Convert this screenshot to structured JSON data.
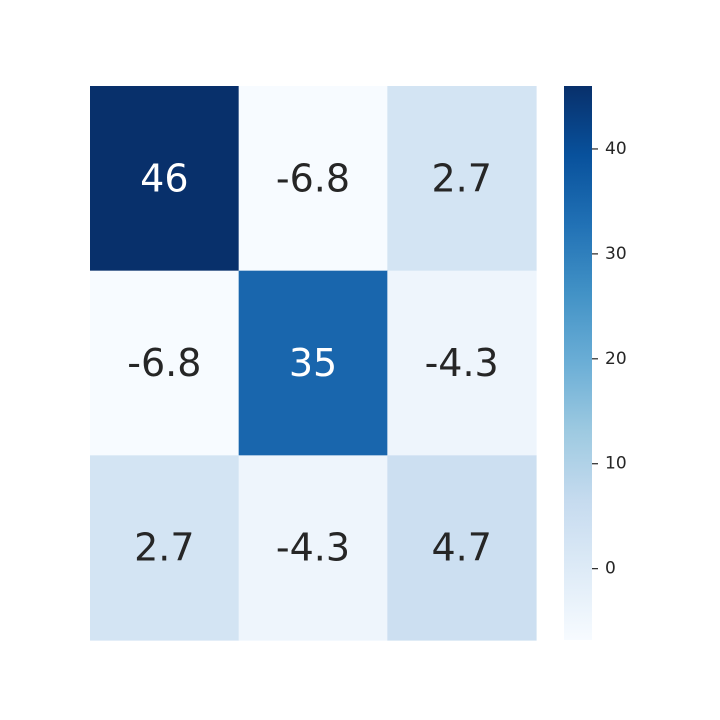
{
  "chart_data": {
    "type": "heatmap",
    "title": "",
    "xlabel": "",
    "ylabel": "",
    "colormap": "Blues",
    "rows": 3,
    "cols": 3,
    "values": [
      [
        46,
        -6.8,
        2.7
      ],
      [
        -6.8,
        35,
        -4.3
      ],
      [
        2.7,
        -4.3,
        4.7
      ]
    ],
    "annotations": [
      [
        "46",
        "-6.8",
        "2.7"
      ],
      [
        "-6.8",
        "35",
        "-4.3"
      ],
      [
        "2.7",
        "-4.3",
        "4.7"
      ]
    ],
    "colorbar": {
      "range": [
        -6.8,
        46
      ],
      "ticks": [
        0,
        10,
        20,
        30,
        40
      ],
      "tick_labels": [
        "0",
        "10",
        "20",
        "30",
        "40"
      ]
    },
    "colors": {
      "dark_text": "#262626",
      "light_text": "#ffffff"
    },
    "grid": false,
    "legend": "colorbar-right"
  }
}
